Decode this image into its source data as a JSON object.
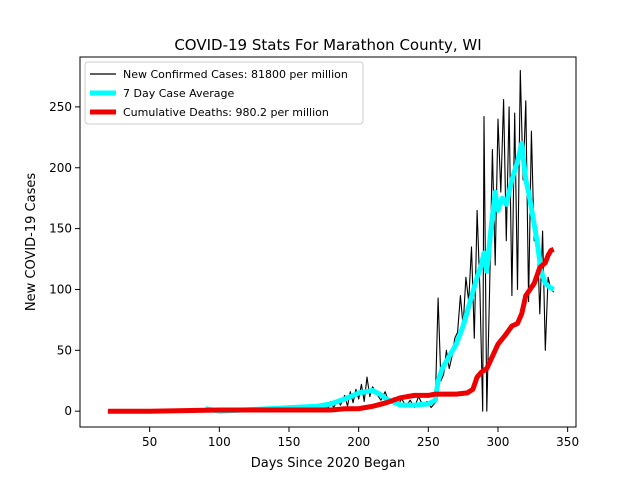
{
  "chart_data": {
    "type": "line",
    "title": "COVID-19 Stats For Marathon County, WI",
    "xlabel": "Days Since 2020 Began",
    "ylabel": "New COVID-19 Cases",
    "xlim": [
      0,
      356
    ],
    "ylim": [
      -13,
      291
    ],
    "xticks": [
      50,
      100,
      150,
      200,
      250,
      300,
      350
    ],
    "yticks": [
      0,
      50,
      100,
      150,
      200,
      250
    ],
    "grid": false,
    "legend_position": "top-left",
    "series": [
      {
        "name": "New Confirmed Cases: 81800 per million",
        "color": "#000000",
        "style": "thin-line",
        "x": [
          20,
          90,
          100,
          130,
          150,
          165,
          170,
          172,
          175,
          178,
          180,
          182,
          185,
          187,
          190,
          192,
          194,
          196,
          198,
          200,
          202,
          204,
          206,
          208,
          210,
          213,
          216,
          219,
          222,
          225,
          228,
          231,
          234,
          237,
          240,
          243,
          246,
          249,
          252,
          255,
          257,
          259,
          261,
          263,
          265,
          267,
          269,
          271,
          273,
          275,
          277,
          279,
          281,
          283,
          285,
          287,
          289,
          290,
          292,
          294,
          296,
          298,
          300,
          302,
          304,
          306,
          308,
          310,
          312,
          314,
          316,
          318,
          320,
          322,
          324,
          326,
          328,
          330,
          332,
          334,
          336,
          338,
          340
        ],
        "y": [
          0,
          1,
          1,
          1,
          1,
          2,
          4,
          3,
          6,
          2,
          8,
          3,
          9,
          5,
          13,
          4,
          16,
          7,
          18,
          10,
          22,
          8,
          28,
          12,
          20,
          14,
          9,
          16,
          7,
          11,
          5,
          10,
          4,
          9,
          3,
          12,
          5,
          8,
          3,
          7,
          93,
          25,
          30,
          50,
          35,
          45,
          60,
          65,
          95,
          70,
          110,
          90,
          135,
          60,
          165,
          100,
          0,
          242,
          0,
          100,
          215,
          120,
          240,
          180,
          256,
          140,
          250,
          95,
          245,
          100,
          280,
          190,
          255,
          90,
          230,
          140,
          150,
          80,
          148,
          50,
          110,
          100,
          98
        ]
      },
      {
        "name": "7 Day Case Average",
        "color": "#00ffff",
        "style": "thick-line",
        "x": [
          90,
          95,
          100,
          170,
          180,
          190,
          200,
          205,
          210,
          215,
          220,
          230,
          240,
          250,
          255,
          257,
          260,
          265,
          270,
          275,
          280,
          285,
          288,
          290,
          292,
          295,
          298,
          300,
          303,
          306,
          310,
          314,
          317,
          320,
          322,
          325,
          328,
          331,
          334,
          337,
          340
        ],
        "y": [
          2,
          1,
          0,
          4,
          6,
          10,
          15,
          16,
          17,
          14,
          10,
          5,
          5,
          6,
          9,
          25,
          35,
          45,
          55,
          70,
          90,
          110,
          120,
          130,
          115,
          150,
          180,
          165,
          175,
          170,
          190,
          205,
          220,
          190,
          180,
          160,
          140,
          115,
          105,
          102,
          100
        ]
      },
      {
        "name": "Cumulative Deaths: 980.2 per million",
        "color": "#ee0000",
        "style": "thick-line",
        "x": [
          20,
          50,
          100,
          120,
          150,
          180,
          190,
          200,
          205,
          210,
          220,
          225,
          230,
          240,
          250,
          255,
          270,
          278,
          282,
          285,
          288,
          292,
          296,
          300,
          305,
          310,
          314,
          317,
          320,
          323,
          326,
          330,
          334,
          336,
          338,
          340
        ],
        "y": [
          0,
          0,
          1,
          1,
          1,
          1,
          2,
          2,
          3,
          4,
          7,
          9,
          11,
          13,
          13,
          14,
          14,
          15,
          18,
          28,
          32,
          35,
          45,
          55,
          62,
          70,
          72,
          80,
          95,
          100,
          105,
          118,
          122,
          128,
          132,
          133
        ]
      }
    ]
  }
}
